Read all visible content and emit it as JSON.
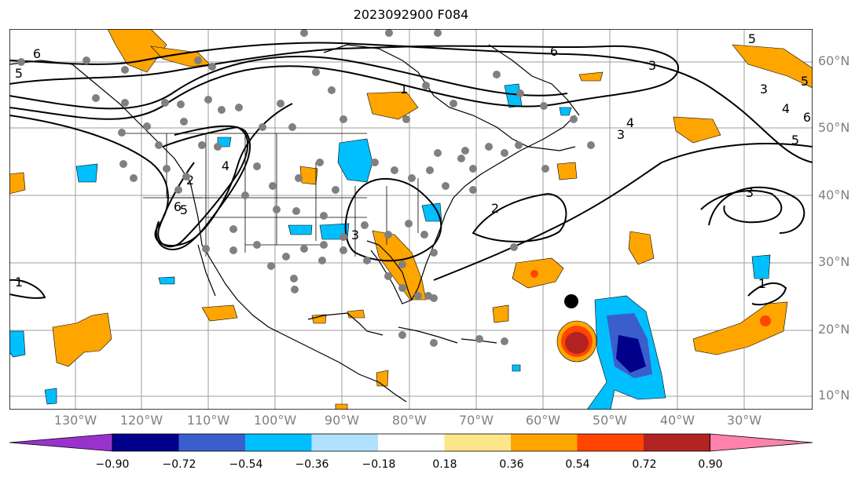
{
  "title": "2023092900 F084",
  "lat_labels": [
    "60°N",
    "50°N",
    "40°N",
    "30°N",
    "20°N",
    "10°N"
  ],
  "lon_labels": [
    "130°W",
    "120°W",
    "110°W",
    "100°W",
    "90°W",
    "80°W",
    "70°W",
    "60°W",
    "50°W",
    "40°W",
    "30°W"
  ],
  "colorbar": {
    "ticks": [
      "−0.90",
      "−0.72",
      "−0.54",
      "−0.36",
      "−0.18",
      "0.18",
      "0.36",
      "0.54",
      "0.72",
      "0.90"
    ],
    "colors": [
      "#9932cc",
      "#00008b",
      "#3a5fcd",
      "#00bfff",
      "#b0e2ff",
      "#ffffff",
      "#fde68a",
      "#ffa500",
      "#ff4500",
      "#b22222",
      "#ff82ab"
    ]
  },
  "contour_labels": [
    "6",
    "5",
    "6",
    "5",
    "1",
    "3",
    "4",
    "3",
    "3",
    "4",
    "5",
    "6",
    "5",
    "3",
    "2",
    "4",
    "5",
    "6",
    "2",
    "1",
    "1",
    "3"
  ],
  "storm_marker": "storm-center"
}
